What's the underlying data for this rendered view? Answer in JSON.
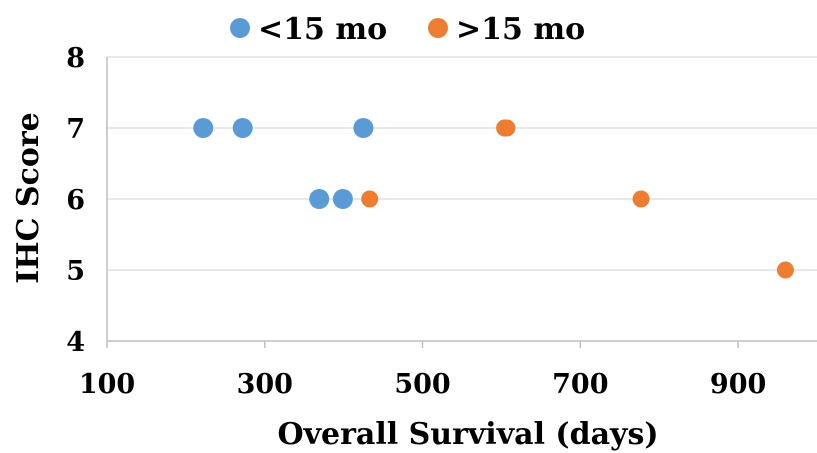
{
  "chart_data": {
    "type": "scatter",
    "title": "",
    "xlabel": "Overall Survival (days)",
    "ylabel": "IHC Score",
    "xlim": [
      100,
      1000
    ],
    "ylim": [
      4,
      8
    ],
    "xticks": [
      "100",
      "300",
      "500",
      "700",
      "900"
    ],
    "yticks": [
      "4",
      "5",
      "6",
      "7",
      "8"
    ],
    "grid": "horizontal",
    "legend": "top",
    "series": [
      {
        "name": "<15 mo",
        "color": "#5b9bd5",
        "points": [
          {
            "x": 222,
            "y": 7
          },
          {
            "x": 272,
            "y": 7
          },
          {
            "x": 425,
            "y": 7
          },
          {
            "x": 369,
            "y": 6
          },
          {
            "x": 399,
            "y": 6
          }
        ]
      },
      {
        "name": ">15 mo",
        "color": "#ed7d31",
        "points": [
          {
            "x": 604,
            "y": 7
          },
          {
            "x": 607,
            "y": 7
          },
          {
            "x": 433,
            "y": 6
          },
          {
            "x": 777,
            "y": 6
          },
          {
            "x": 960,
            "y": 5
          }
        ]
      }
    ]
  }
}
